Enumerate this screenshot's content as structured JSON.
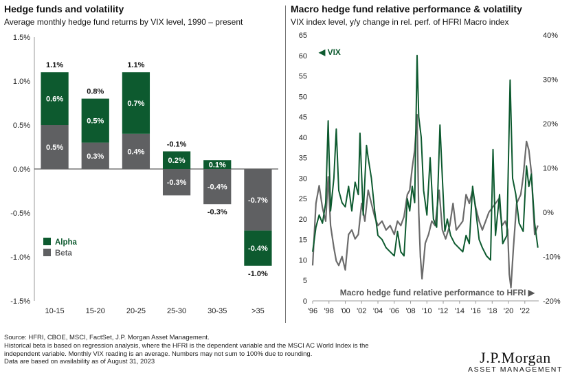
{
  "left": {
    "title": "Hedge funds and volatility",
    "subtitle": "Average monthly hedge fund returns by VIX level, 1990 – present"
  },
  "right": {
    "title": "Macro hedge fund relative performance & volatility",
    "subtitle": "VIX index level, y/y change in rel. perf. of HFRI Macro index"
  },
  "footnotes": {
    "line1": "Source: HFRI, CBOE, MSCI, FactSet, J.P. Morgan Asset Management.",
    "line2": "Historical beta is based on regression analysis, where the HFRI is the dependent variable and the MSCI AC World Index is the independent variable. Monthly VIX reading is an average. Numbers may not sum to 100% due to rounding.",
    "line3": "Data are based on availability as of August 31, 2023"
  },
  "logo": {
    "main": "J.P.Morgan",
    "sub": "ASSET MANAGEMENT"
  },
  "colors": {
    "alpha": "#0d5a2f",
    "beta": "#5f6062",
    "hfri": "#6b6b6b"
  },
  "chart_data": [
    {
      "type": "bar",
      "stacked": true,
      "title": "Hedge funds and volatility",
      "categories": [
        "10-15",
        "15-20",
        "20-25",
        "25-30",
        "30-35",
        ">35"
      ],
      "series": [
        {
          "name": "Alpha",
          "values": [
            0.6,
            0.5,
            0.7,
            0.2,
            0.1,
            -0.4
          ],
          "labels": [
            "0.6%",
            "0.5%",
            "0.7%",
            "0.2%",
            "0.1%",
            "-0.4%"
          ]
        },
        {
          "name": "Beta",
          "values": [
            0.5,
            0.3,
            0.4,
            -0.3,
            -0.4,
            -0.7
          ],
          "labels": [
            "0.5%",
            "0.3%",
            "0.4%",
            "-0.3%",
            "-0.4%",
            "-0.7%"
          ]
        }
      ],
      "totals": [
        1.1,
        0.8,
        1.1,
        -0.1,
        -0.3,
        -1.0
      ],
      "total_labels": [
        "1.1%",
        "0.8%",
        "1.1%",
        "-0.1%",
        "-0.3%",
        "-1.0%"
      ],
      "ylim": [
        -1.5,
        1.5
      ],
      "yticks": [
        "1.5%",
        "1.0%",
        "0.5%",
        "0.0%",
        "-0.5%",
        "-1.0%",
        "-1.5%"
      ],
      "legend_position": "bottom-left"
    },
    {
      "type": "line",
      "title": "Macro hedge fund relative performance & volatility",
      "xticks": [
        "'96",
        "'98",
        "'00",
        "'02",
        "'04",
        "'06",
        "'08",
        "'10",
        "'12",
        "'14",
        "'16",
        "'18",
        "'20",
        "'22"
      ],
      "xlim": [
        1996,
        2023.7
      ],
      "left_axis": {
        "ylim": [
          0,
          65
        ],
        "ticks": [
          "0",
          "5",
          "10",
          "15",
          "20",
          "25",
          "30",
          "35",
          "40",
          "45",
          "50",
          "55",
          "60",
          "65"
        ]
      },
      "right_axis": {
        "ylim": [
          -20,
          40
        ],
        "ticks": [
          "-20%",
          "-10%",
          "0%",
          "10%",
          "20%",
          "30%",
          "40%"
        ]
      },
      "series": [
        {
          "name": "VIX",
          "axis": "left",
          "label": "◀ VIX",
          "points": [
            [
              1996.0,
              12
            ],
            [
              1996.4,
              18
            ],
            [
              1996.8,
              21
            ],
            [
              1997.2,
              19
            ],
            [
              1997.6,
              24
            ],
            [
              1997.9,
              44
            ],
            [
              1998.2,
              22
            ],
            [
              1998.6,
              30
            ],
            [
              1998.9,
              42
            ],
            [
              1999.2,
              27
            ],
            [
              1999.6,
              24
            ],
            [
              2000.0,
              23
            ],
            [
              2000.4,
              28
            ],
            [
              2000.8,
              22
            ],
            [
              2001.2,
              29
            ],
            [
              2001.6,
              26
            ],
            [
              2001.8,
              41
            ],
            [
              2002.2,
              21
            ],
            [
              2002.6,
              38
            ],
            [
              2002.8,
              35
            ],
            [
              2003.2,
              30
            ],
            [
              2003.6,
              22
            ],
            [
              2004.0,
              16
            ],
            [
              2004.5,
              15
            ],
            [
              2005.0,
              13
            ],
            [
              2005.5,
              12
            ],
            [
              2006.0,
              11
            ],
            [
              2006.4,
              17
            ],
            [
              2006.8,
              12
            ],
            [
              2007.2,
              11
            ],
            [
              2007.6,
              25
            ],
            [
              2007.9,
              22
            ],
            [
              2008.2,
              28
            ],
            [
              2008.5,
              24
            ],
            [
              2008.8,
              60
            ],
            [
              2009.0,
              45
            ],
            [
              2009.3,
              40
            ],
            [
              2009.6,
              27
            ],
            [
              2010.0,
              21
            ],
            [
              2010.4,
              35
            ],
            [
              2010.8,
              20
            ],
            [
              2011.2,
              18
            ],
            [
              2011.6,
              43
            ],
            [
              2011.9,
              30
            ],
            [
              2012.2,
              17
            ],
            [
              2012.5,
              20
            ],
            [
              2012.9,
              16
            ],
            [
              2013.4,
              14
            ],
            [
              2013.9,
              13
            ],
            [
              2014.4,
              12
            ],
            [
              2014.8,
              16
            ],
            [
              2015.2,
              14
            ],
            [
              2015.6,
              28
            ],
            [
              2016.0,
              22
            ],
            [
              2016.4,
              15
            ],
            [
              2016.8,
              13
            ],
            [
              2017.3,
              11
            ],
            [
              2017.8,
              10
            ],
            [
              2018.1,
              37
            ],
            [
              2018.4,
              16
            ],
            [
              2018.9,
              26
            ],
            [
              2019.3,
              14
            ],
            [
              2019.8,
              16
            ],
            [
              2020.2,
              54
            ],
            [
              2020.5,
              30
            ],
            [
              2020.9,
              26
            ],
            [
              2021.3,
              19
            ],
            [
              2021.8,
              17
            ],
            [
              2022.2,
              33
            ],
            [
              2022.5,
              28
            ],
            [
              2022.8,
              31
            ],
            [
              2023.2,
              19
            ],
            [
              2023.6,
              13
            ]
          ]
        },
        {
          "name": "Macro hedge fund relative performance to HFRI",
          "axis": "right",
          "label": "Macro hedge fund relative performance to HFRI ▶",
          "points": [
            [
              1996.0,
              -12
            ],
            [
              1996.4,
              2
            ],
            [
              1996.8,
              6
            ],
            [
              1997.2,
              1
            ],
            [
              1997.6,
              -2
            ],
            [
              1997.9,
              8
            ],
            [
              1998.2,
              -3
            ],
            [
              1998.6,
              -8
            ],
            [
              1998.9,
              -11
            ],
            [
              1999.2,
              -12
            ],
            [
              1999.6,
              -10
            ],
            [
              2000.0,
              -13
            ],
            [
              2000.4,
              -5
            ],
            [
              2000.8,
              -4
            ],
            [
              2001.2,
              -6
            ],
            [
              2001.6,
              -5
            ],
            [
              2002.0,
              2
            ],
            [
              2002.4,
              -2
            ],
            [
              2002.8,
              5
            ],
            [
              2003.2,
              2
            ],
            [
              2003.6,
              -1
            ],
            [
              2004.0,
              -3
            ],
            [
              2004.5,
              -2
            ],
            [
              2005.0,
              -4
            ],
            [
              2005.5,
              -3
            ],
            [
              2006.0,
              -5
            ],
            [
              2006.4,
              -2
            ],
            [
              2006.8,
              -3
            ],
            [
              2007.2,
              -1
            ],
            [
              2007.6,
              4
            ],
            [
              2007.9,
              5
            ],
            [
              2008.2,
              10
            ],
            [
              2008.5,
              14
            ],
            [
              2008.8,
              22
            ],
            [
              2009.0,
              0
            ],
            [
              2009.2,
              -10
            ],
            [
              2009.4,
              -15
            ],
            [
              2009.8,
              -7
            ],
            [
              2010.2,
              -5
            ],
            [
              2010.6,
              -2
            ],
            [
              2011.0,
              -3
            ],
            [
              2011.5,
              5
            ],
            [
              2011.9,
              -4
            ],
            [
              2012.3,
              -6
            ],
            [
              2012.8,
              -3
            ],
            [
              2013.2,
              2
            ],
            [
              2013.6,
              -4
            ],
            [
              2014.0,
              -3
            ],
            [
              2014.4,
              -2
            ],
            [
              2014.8,
              4
            ],
            [
              2015.2,
              2
            ],
            [
              2015.6,
              5
            ],
            [
              2016.0,
              1
            ],
            [
              2016.4,
              -2
            ],
            [
              2016.8,
              -4
            ],
            [
              2017.2,
              -2
            ],
            [
              2017.6,
              0
            ],
            [
              2018.0,
              1
            ],
            [
              2018.4,
              2
            ],
            [
              2018.8,
              3
            ],
            [
              2019.2,
              -3
            ],
            [
              2019.6,
              -2
            ],
            [
              2019.9,
              -4
            ],
            [
              2020.1,
              -14
            ],
            [
              2020.3,
              -17
            ],
            [
              2020.6,
              -8
            ],
            [
              2021.0,
              2
            ],
            [
              2021.5,
              4
            ],
            [
              2021.8,
              8
            ],
            [
              2022.2,
              16
            ],
            [
              2022.5,
              14
            ],
            [
              2022.8,
              9
            ],
            [
              2023.2,
              -5
            ],
            [
              2023.6,
              -3
            ]
          ]
        }
      ]
    }
  ]
}
